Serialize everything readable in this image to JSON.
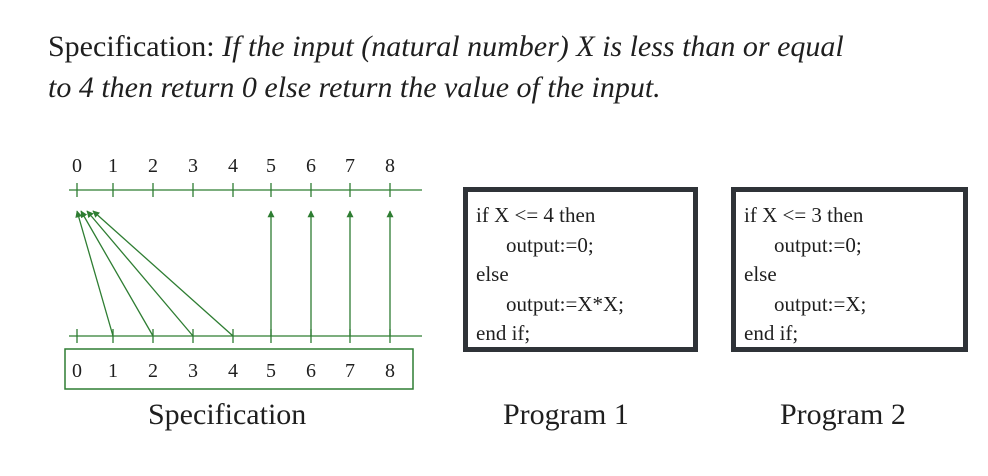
{
  "title": {
    "intro": "Specification: ",
    "body_line1": "If the input (natural number) X is less than or equal",
    "body_line2": "to 4 then return 0 else return the value of the input."
  },
  "diagram": {
    "stroke_color": "#2e7d32",
    "top_labels": [
      "0",
      "1",
      "2",
      "3",
      "4",
      "5",
      "6",
      "7",
      "8"
    ],
    "bottom_labels": [
      "0",
      "1",
      "2",
      "3",
      "4",
      "5",
      "6",
      "7",
      "8"
    ],
    "mapping": [
      {
        "input": 1,
        "output": 0
      },
      {
        "input": 2,
        "output": 0
      },
      {
        "input": 3,
        "output": 0
      },
      {
        "input": 4,
        "output": 0
      },
      {
        "input": 5,
        "output": 5
      },
      {
        "input": 6,
        "output": 6
      },
      {
        "input": 7,
        "output": 7
      },
      {
        "input": 8,
        "output": 8
      }
    ]
  },
  "program1": {
    "lines": [
      "if X <= 4 then",
      "output:=0;",
      "else",
      "output:=X*X;",
      "end if;"
    ]
  },
  "program2": {
    "lines": [
      "if X <= 3 then",
      "output:=0;",
      "else",
      "output:=X;",
      "end if;"
    ]
  },
  "captions": {
    "spec": "Specification",
    "program1": "Program 1",
    "program2": "Program 2"
  }
}
